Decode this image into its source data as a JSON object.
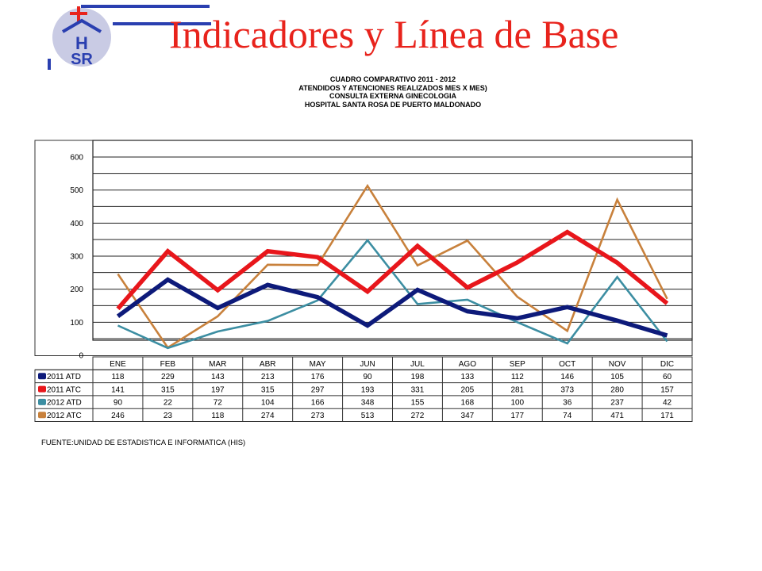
{
  "slide": {
    "title": "Indicadores y Línea de Base",
    "logo_text": "HSR"
  },
  "chart_heading": [
    "CUADRO COMPARATIVO 2011 - 2012",
    "ATENDIDOS Y ATENCIONES  REALIZADOS MES X MES)",
    "CONSULTA EXTERNA GINECOLOGIA",
    "HOSPITAL  SANTA ROSA DE PUERTO MALDONADO"
  ],
  "source_note": "FUENTE:UNIDAD  DE ESTADISTICA  E INFORMATICA  (HIS)",
  "colors": {
    "title": "#e8231c",
    "series_2011_atd": "#0d1a7a",
    "series_2011_atc": "#e8161b",
    "series_2012_atd": "#3c8ea2",
    "series_2012_atc": "#c8813c"
  },
  "chart_data": {
    "type": "line",
    "categories": [
      "ENE",
      "FEB",
      "MAR",
      "ABR",
      "MAY",
      "JUN",
      "JUL",
      "AGO",
      "SEP",
      "OCT",
      "NOV",
      "DIC"
    ],
    "ylim": [
      0,
      600
    ],
    "yticks": [
      0,
      100,
      200,
      300,
      400,
      500,
      600
    ],
    "grid": true,
    "legend": "data-table-below",
    "series": [
      {
        "name": "2011 ATD",
        "color": "#0d1a7a",
        "values": [
          118,
          229,
          143,
          213,
          176,
          90,
          198,
          133,
          112,
          146,
          105,
          60
        ]
      },
      {
        "name": "2011 ATC",
        "color": "#e8161b",
        "values": [
          141,
          315,
          197,
          315,
          297,
          193,
          331,
          205,
          281,
          373,
          280,
          157
        ]
      },
      {
        "name": "2012 ATD",
        "color": "#3c8ea2",
        "values": [
          90,
          22,
          72,
          104,
          166,
          348,
          155,
          168,
          100,
          36,
          237,
          42
        ]
      },
      {
        "name": "2012 ATC",
        "color": "#c8813c",
        "values": [
          246,
          23,
          118,
          274,
          273,
          513,
          272,
          347,
          177,
          74,
          471,
          171
        ]
      }
    ]
  }
}
